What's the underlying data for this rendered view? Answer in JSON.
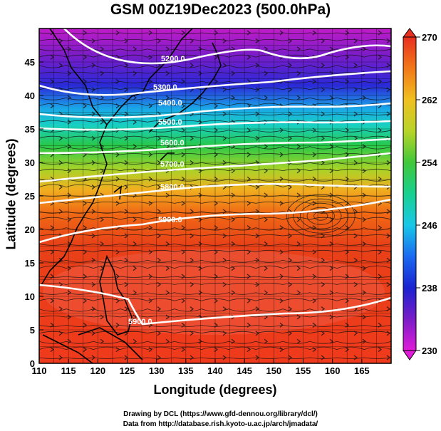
{
  "title": "GSM 00Z19Dec2023 (500.0hPa)",
  "x_axis_label": "Longitude (degrees)",
  "y_axis_label": "Latitude  (degrees)",
  "credits": [
    "Drawing by DCL (https://www.gfd-dennou.org/library/dcl/)",
    "Data from http://database.rish.kyoto-u.ac.jp/arch/jmadata/"
  ],
  "map": {
    "lon_range": [
      110,
      170
    ],
    "lat_range": [
      0,
      50
    ],
    "lon_ticks": [
      "110",
      "115",
      "120",
      "125",
      "130",
      "135",
      "140",
      "145",
      "150",
      "155",
      "160",
      "165"
    ],
    "lat_ticks": [
      "0",
      "5",
      "10",
      "15",
      "20",
      "25",
      "30",
      "35",
      "40",
      "45"
    ]
  },
  "temperature_colorbar": {
    "range": [
      230,
      270
    ],
    "tick_labels": [
      "270",
      "262",
      "254",
      "246",
      "238",
      "230"
    ],
    "colors": [
      "#d21cd2",
      "#6a16c8",
      "#1a2ad8",
      "#1a8ef0",
      "#18d8d8",
      "#20c84a",
      "#9ad42a",
      "#f0d020",
      "#f28a12",
      "#e83818",
      "#e02020"
    ]
  },
  "height_contours": [
    {
      "label": "5200.0"
    },
    {
      "label": "5300.0"
    },
    {
      "label": "5400.0"
    },
    {
      "label": "5500.0"
    },
    {
      "label": "5600.0"
    },
    {
      "label": "5700.0"
    },
    {
      "label": "5800.0"
    },
    {
      "label": "5900.0"
    }
  ]
}
